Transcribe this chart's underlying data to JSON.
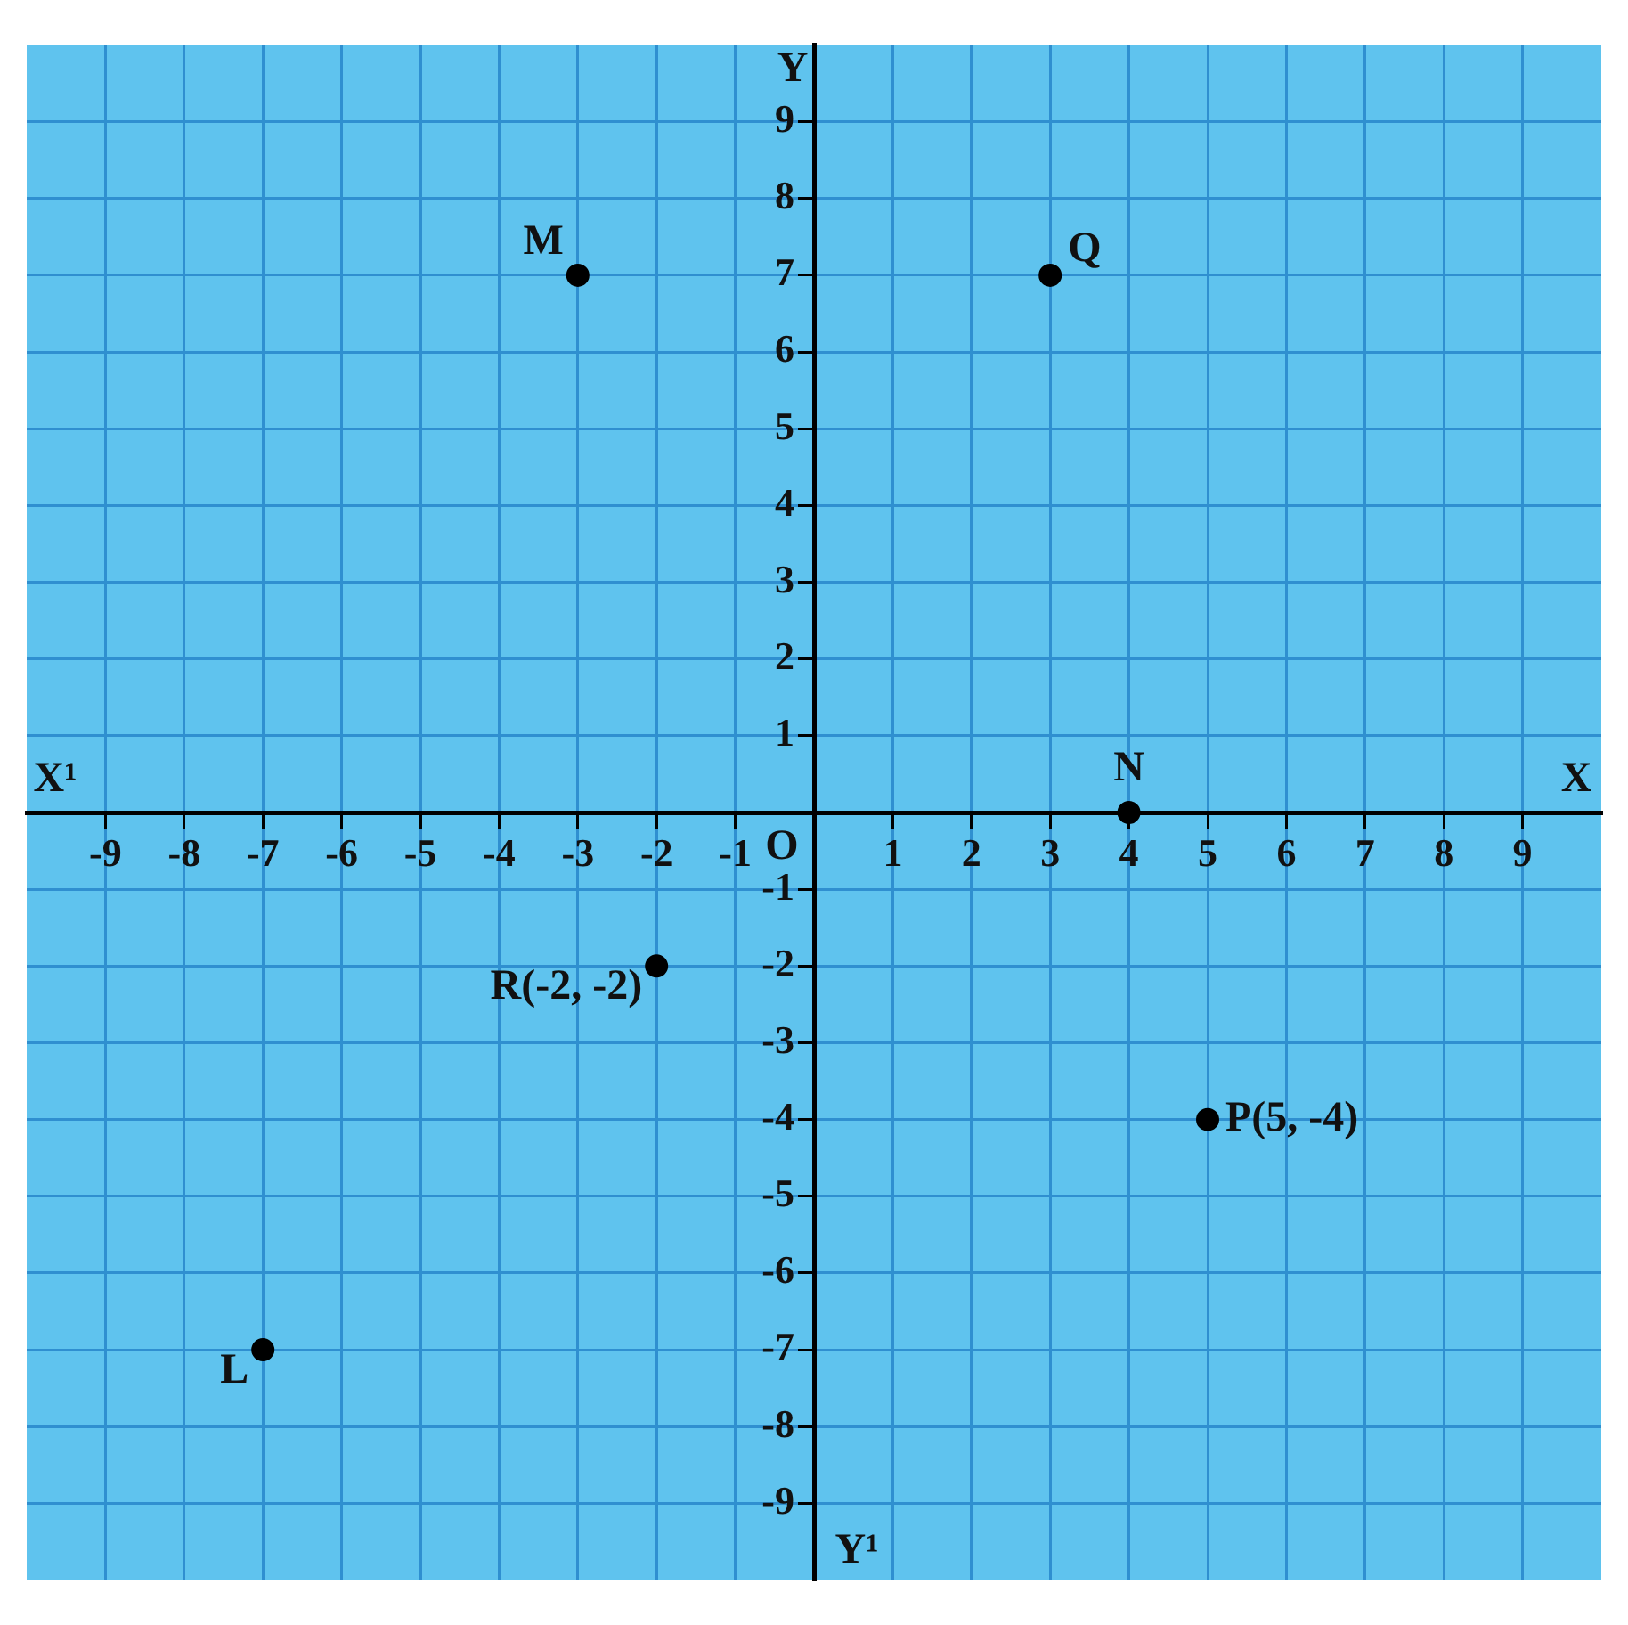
{
  "chart_data": {
    "type": "scatter",
    "x": [
      -3,
      3,
      4,
      -2,
      5,
      -7
    ],
    "values": [
      7,
      7,
      0,
      -2,
      -4,
      -7
    ],
    "color": "#000000",
    "marker": "circle",
    "grid": true,
    "xlim": [
      -10,
      10
    ],
    "ylim": [
      -10,
      10
    ],
    "xticks": [
      -9,
      -8,
      -7,
      -6,
      -5,
      -4,
      -3,
      -2,
      -1,
      1,
      2,
      3,
      4,
      5,
      6,
      7,
      8,
      9
    ],
    "yticks": [
      -9,
      -8,
      -7,
      -6,
      -5,
      -4,
      -3,
      -2,
      -1,
      1,
      2,
      3,
      4,
      5,
      6,
      7,
      8,
      9
    ],
    "annotations": [
      {
        "text": "M",
        "x": -3,
        "y": 7
      },
      {
        "text": "Q",
        "x": 3,
        "y": 7
      },
      {
        "text": "N",
        "x": 4,
        "y": 0
      },
      {
        "text": "R(-2, -2)",
        "x": -2,
        "y": -2
      },
      {
        "text": "P(5, -4)",
        "x": 5,
        "y": -4
      },
      {
        "text": "L",
        "x": -7,
        "y": -7
      },
      "O",
      "X",
      "X¹",
      "Y",
      "Y¹"
    ]
  }
}
